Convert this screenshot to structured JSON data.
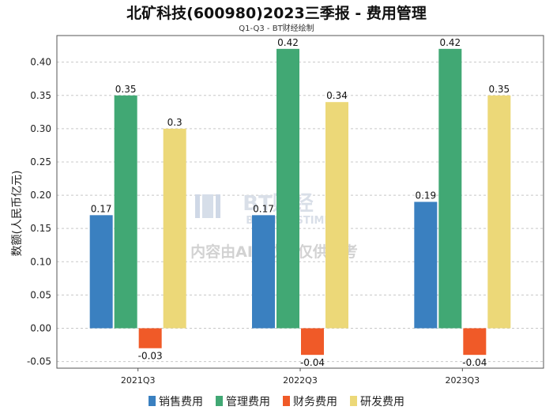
{
  "chart_data": {
    "type": "bar",
    "title": "北矿科技(600980)2023三季报 - 费用管理",
    "subtitle": "Q1-Q3 - BT财经绘制",
    "xlabel": "",
    "ylabel": "数额(人民币亿元)",
    "ylim": [
      -0.06,
      0.44
    ],
    "yticks": [
      -0.05,
      0.0,
      0.05,
      0.1,
      0.15,
      0.2,
      0.25,
      0.3,
      0.35,
      0.4
    ],
    "ytick_labels": [
      "-0.05",
      "0.00",
      "0.05",
      "0.10",
      "0.15",
      "0.20",
      "0.25",
      "0.30",
      "0.35",
      "0.40"
    ],
    "grid": true,
    "legend_position": "bottom",
    "categories": [
      "2021Q3",
      "2022Q3",
      "2023Q3"
    ],
    "series": [
      {
        "name": "销售费用",
        "color": "#3a80c0",
        "values": [
          0.17,
          0.17,
          0.19
        ],
        "labels": [
          "0.17",
          "0.17",
          "0.19"
        ]
      },
      {
        "name": "管理费用",
        "color": "#41a874",
        "values": [
          0.35,
          0.42,
          0.42
        ],
        "labels": [
          "0.35",
          "0.42",
          "0.42"
        ]
      },
      {
        "name": "财务费用",
        "color": "#f05a28",
        "values": [
          -0.03,
          -0.04,
          -0.04
        ],
        "labels": [
          "-0.03",
          "-0.04",
          "-0.04"
        ]
      },
      {
        "name": "研发费用",
        "color": "#ecd878",
        "values": [
          0.3,
          0.34,
          0.35
        ],
        "labels": [
          "0.3",
          "0.34",
          "0.35"
        ]
      }
    ]
  },
  "watermark": {
    "brand": "BT财经",
    "brand_en": "BUSINESSTIMES",
    "notice": "内容由AI生成，仅供参考"
  }
}
